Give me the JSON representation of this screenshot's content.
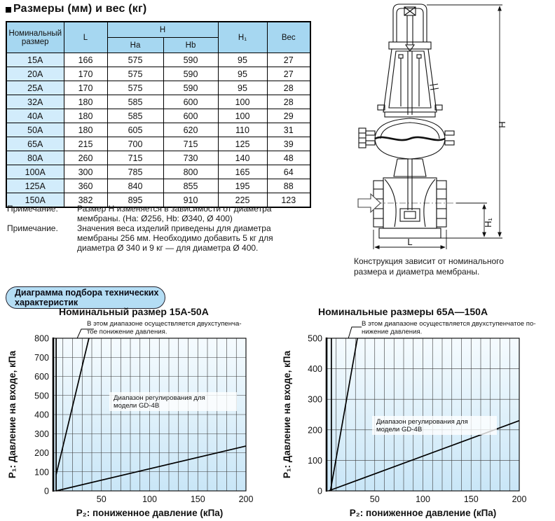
{
  "page": {
    "title": "Размеры (мм) и вес (кг)"
  },
  "table": {
    "col_nominal": "Номинальный размер",
    "col_l": "L",
    "col_h": "H",
    "col_ha": "Ha",
    "col_hb": "Hb",
    "col_h1": "H₁",
    "col_weight": "Вес",
    "rows": [
      [
        "15A",
        "166",
        "575",
        "590",
        "95",
        "27"
      ],
      [
        "20A",
        "170",
        "575",
        "590",
        "95",
        "27"
      ],
      [
        "25A",
        "170",
        "575",
        "590",
        "95",
        "28"
      ],
      [
        "32A",
        "180",
        "585",
        "600",
        "100",
        "28"
      ],
      [
        "40A",
        "180",
        "585",
        "600",
        "100",
        "29"
      ],
      [
        "50A",
        "180",
        "605",
        "620",
        "110",
        "31"
      ],
      [
        "65A",
        "215",
        "700",
        "715",
        "125",
        "39"
      ],
      [
        "80A",
        "260",
        "715",
        "730",
        "140",
        "48"
      ],
      [
        "100A",
        "300",
        "785",
        "800",
        "165",
        "64"
      ],
      [
        "125A",
        "360",
        "840",
        "855",
        "195",
        "88"
      ],
      [
        "150A",
        "382",
        "895",
        "910",
        "225",
        "123"
      ]
    ]
  },
  "notes": [
    {
      "label": "Примечание.",
      "text": "Размер H изменяется в зависимости от диаметра мембраны. (Ha: Ø256, Hb: Ø340, Ø 400)"
    },
    {
      "label": "Примечание.",
      "text": "Значения веса изделий приведены для диаметра мембраны 256 мм. Необходимо добавить 5 кг для диаметра Ø 340 и 9 кг — для диаметра Ø 400."
    }
  ],
  "drawing": {
    "caption": "Конструкция зависит от номинального размера и диаметра мембраны.",
    "dim_h": "H",
    "dim_h1": "H₁",
    "dim_l": "L"
  },
  "section_header": "Диаграмма подбора технических характеристик",
  "colors": {
    "table_header_bg": "#a6d7f1",
    "table_rowhead_bg": "#d2ecfb",
    "pill_bg": "#b4ddf4",
    "chart_bg_top": "#f5fbfe",
    "chart_bg_bottom": "#c9e6f7",
    "grid_line": "#3a3a3a",
    "series_line": "#000000"
  },
  "chart_data": [
    {
      "type": "line",
      "title": "Номинальный размер 15А-50А",
      "annotation_lines": [
        "В этом диапазоне осуществляется двухступенча-",
        "тое понижение давления."
      ],
      "inner_annotation_lines": [
        "Диапазон регулирования для",
        "модели GD-4B"
      ],
      "xlabel": "P₂: пониженное давление (кПа)",
      "ylabel": "P₁: Давление на входе, кПа",
      "xlim": [
        0,
        200
      ],
      "ylim": [
        0,
        800
      ],
      "x_ticks": [
        50,
        100,
        150,
        200
      ],
      "y_ticks": [
        0,
        100,
        200,
        300,
        400,
        500,
        600,
        700,
        800
      ],
      "grid_x_step": 10,
      "grid_y_step": 100,
      "grid": true,
      "legend": "none",
      "series": [
        {
          "name": "min-p2-boundary",
          "points": [
            [
              3,
              0
            ],
            [
              3,
              800
            ]
          ]
        },
        {
          "name": "two-stage-boundary",
          "points": [
            [
              3,
              85
            ],
            [
              37,
              800
            ]
          ]
        },
        {
          "name": "regulation-lower-boundary",
          "points": [
            [
              3,
              0
            ],
            [
              200,
              235
            ]
          ]
        }
      ]
    },
    {
      "type": "line",
      "title": "Номинальные размеры 65А—150А",
      "annotation_lines": [
        "В этом диапазоне осуществляется двухступенчатое по-",
        "нижение давления."
      ],
      "inner_annotation_lines": [
        "Диапазон регулирования для",
        "модели GD-4B"
      ],
      "xlabel": "P₂: пониженное давление (кПа)",
      "ylabel": "P₁: Давление на входе, кПа",
      "xlim": [
        0,
        200
      ],
      "ylim": [
        0,
        500
      ],
      "x_ticks": [
        50,
        100,
        150,
        200
      ],
      "y_ticks": [
        0,
        100,
        200,
        300,
        400,
        500
      ],
      "grid_x_step": 10,
      "grid_y_step": 100,
      "grid": true,
      "legend": "none",
      "series": [
        {
          "name": "min-p2-boundary",
          "points": [
            [
              5,
              0
            ],
            [
              5,
              500
            ]
          ]
        },
        {
          "name": "two-stage-boundary",
          "points": [
            [
              4,
              0
            ],
            [
              32,
              500
            ]
          ]
        },
        {
          "name": "regulation-lower-boundary",
          "points": [
            [
              2,
              0
            ],
            [
              200,
              230
            ]
          ]
        }
      ]
    }
  ]
}
